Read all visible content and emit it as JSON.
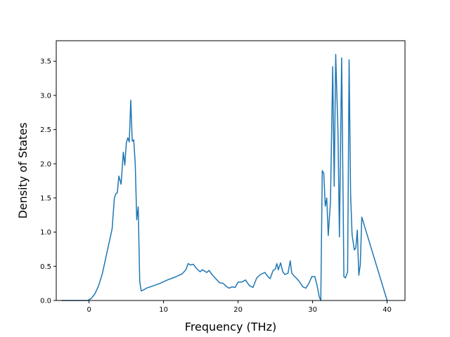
{
  "chart_data": {
    "type": "line",
    "title": "",
    "xlabel": "Frequency (THz)",
    "ylabel": "Density of States",
    "xlim": [
      -4.4,
      42.4
    ],
    "ylim": [
      0,
      3.8
    ],
    "xticks": [
      0,
      10,
      20,
      30,
      40
    ],
    "yticks": [
      0.0,
      0.5,
      1.0,
      1.5,
      2.0,
      2.5,
      3.0,
      3.5
    ],
    "xtick_labels": [
      "0",
      "10",
      "20",
      "30",
      "40"
    ],
    "ytick_labels": [
      "0.0",
      "0.5",
      "1.0",
      "1.5",
      "2.0",
      "2.5",
      "3.0",
      "3.5"
    ],
    "grid": false,
    "legend": "none",
    "series": [
      {
        "color": "#1f77b4",
        "x": [
          -3.7,
          -0.2,
          0.3,
          0.8,
          1.3,
          1.8,
          2.3,
          2.8,
          3.1,
          3.4,
          3.6,
          3.8,
          4.0,
          4.3,
          4.6,
          4.8,
          5.0,
          5.2,
          5.4,
          5.6,
          5.8,
          6.0,
          6.2,
          6.4,
          6.6,
          6.8,
          7.0,
          7.2,
          7.4,
          7.7,
          8.5,
          9.5,
          10.5,
          11.5,
          12.5,
          13.0,
          13.3,
          13.6,
          14.0,
          14.4,
          14.9,
          15.2,
          15.5,
          15.8,
          16.1,
          16.5,
          17.5,
          18.0,
          18.5,
          18.8,
          19.2,
          19.6,
          20.0,
          20.5,
          21.0,
          21.5,
          22.0,
          22.5,
          23.0,
          23.6,
          24.0,
          24.3,
          24.7,
          25.0,
          25.2,
          25.4,
          25.7,
          26.0,
          26.3,
          26.7,
          27.0,
          27.2,
          27.5,
          27.8,
          28.2,
          28.7,
          29.1,
          29.5,
          29.9,
          30.3,
          30.6,
          30.9,
          31.1,
          31.3,
          31.5,
          31.7,
          31.9,
          32.1,
          32.4,
          32.7,
          32.9,
          33.1,
          33.4,
          33.6,
          33.9,
          34.2,
          34.4,
          34.7,
          34.9,
          35.1,
          35.3,
          35.6,
          35.8,
          36.0,
          36.2,
          36.4,
          36.6,
          40.0
        ],
        "y": [
          0.0,
          0.0,
          0.03,
          0.1,
          0.22,
          0.4,
          0.65,
          0.9,
          1.05,
          1.5,
          1.56,
          1.58,
          1.82,
          1.7,
          2.17,
          1.98,
          2.3,
          2.38,
          2.32,
          2.93,
          2.33,
          2.35,
          2.0,
          1.18,
          1.37,
          0.28,
          0.14,
          0.15,
          0.16,
          0.18,
          0.21,
          0.25,
          0.3,
          0.34,
          0.39,
          0.45,
          0.54,
          0.52,
          0.53,
          0.47,
          0.42,
          0.45,
          0.43,
          0.41,
          0.44,
          0.38,
          0.26,
          0.25,
          0.2,
          0.18,
          0.2,
          0.19,
          0.27,
          0.27,
          0.3,
          0.22,
          0.19,
          0.33,
          0.38,
          0.41,
          0.35,
          0.32,
          0.44,
          0.46,
          0.54,
          0.45,
          0.55,
          0.42,
          0.38,
          0.4,
          0.58,
          0.4,
          0.36,
          0.33,
          0.28,
          0.2,
          0.18,
          0.25,
          0.35,
          0.35,
          0.22,
          0.05,
          0.0,
          1.9,
          1.86,
          1.38,
          1.5,
          0.95,
          1.45,
          3.42,
          1.67,
          3.6,
          2.5,
          0.93,
          3.55,
          0.35,
          0.33,
          0.42,
          3.52,
          1.55,
          0.96,
          0.74,
          0.77,
          1.03,
          0.37,
          0.52,
          1.22,
          0.0
        ]
      }
    ]
  }
}
